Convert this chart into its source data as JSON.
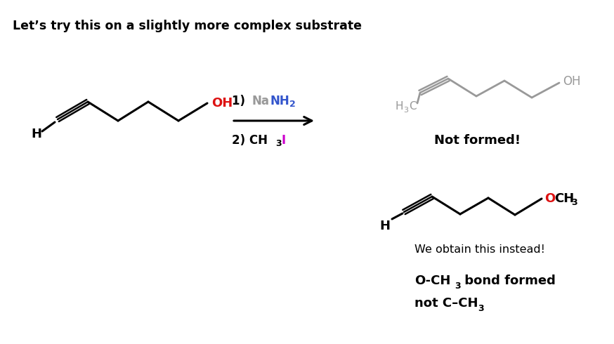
{
  "title": "Let’s try this on a slightly more complex substrate",
  "background_color": "#ffffff",
  "title_fontsize": 12.5,
  "title_fontweight": "bold",
  "fig_width": 8.74,
  "fig_height": 4.9,
  "not_formed_label": "Not formed!",
  "obtain_label": "We obtain this instead!",
  "gray_color": "#999999",
  "red_color": "#dd1111",
  "blue_color": "#3355cc",
  "magenta_color": "#cc00cc"
}
